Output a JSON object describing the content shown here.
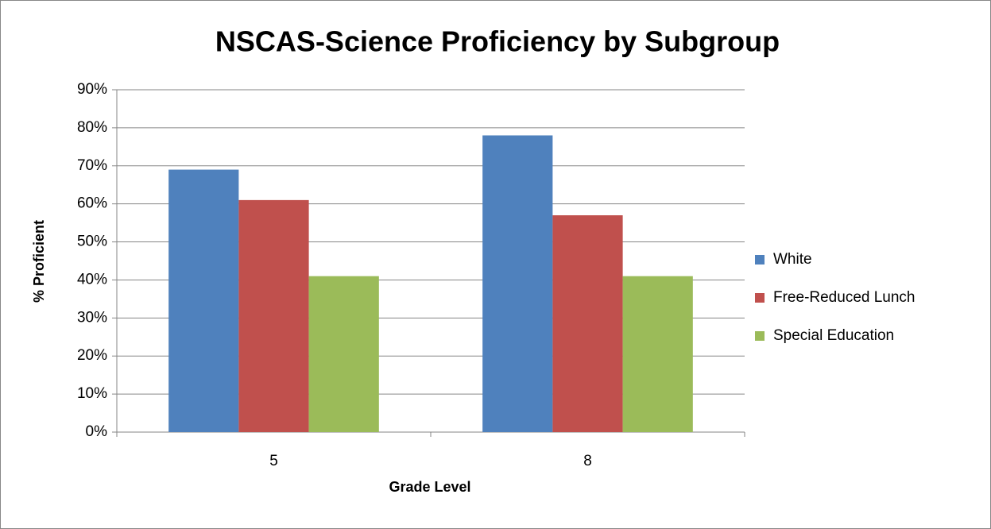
{
  "chart_data": {
    "type": "bar",
    "title": "NSCAS-Science Proficiency by Subgroup",
    "x_label": "Grade Level",
    "y_label": "% Proficient",
    "categories": [
      "5",
      "8"
    ],
    "series": [
      {
        "name": "White",
        "color": "#4f81bd",
        "values": [
          69,
          78
        ]
      },
      {
        "name": "Free-Reduced Lunch",
        "color": "#c0504d",
        "values": [
          61,
          57
        ]
      },
      {
        "name": "Special Education",
        "color": "#9bbb59",
        "values": [
          41,
          41
        ]
      }
    ],
    "ylim": [
      0,
      90
    ],
    "yticks": [
      {
        "value": 0,
        "label": "0%"
      },
      {
        "value": 10,
        "label": "10%"
      },
      {
        "value": 20,
        "label": "20%"
      },
      {
        "value": 30,
        "label": "30%"
      },
      {
        "value": 40,
        "label": "40%"
      },
      {
        "value": 50,
        "label": "50%"
      },
      {
        "value": 60,
        "label": "60%"
      },
      {
        "value": 70,
        "label": "70%"
      },
      {
        "value": 80,
        "label": "80%"
      },
      {
        "value": 90,
        "label": "90%"
      }
    ],
    "grid": true,
    "legend": "right"
  }
}
